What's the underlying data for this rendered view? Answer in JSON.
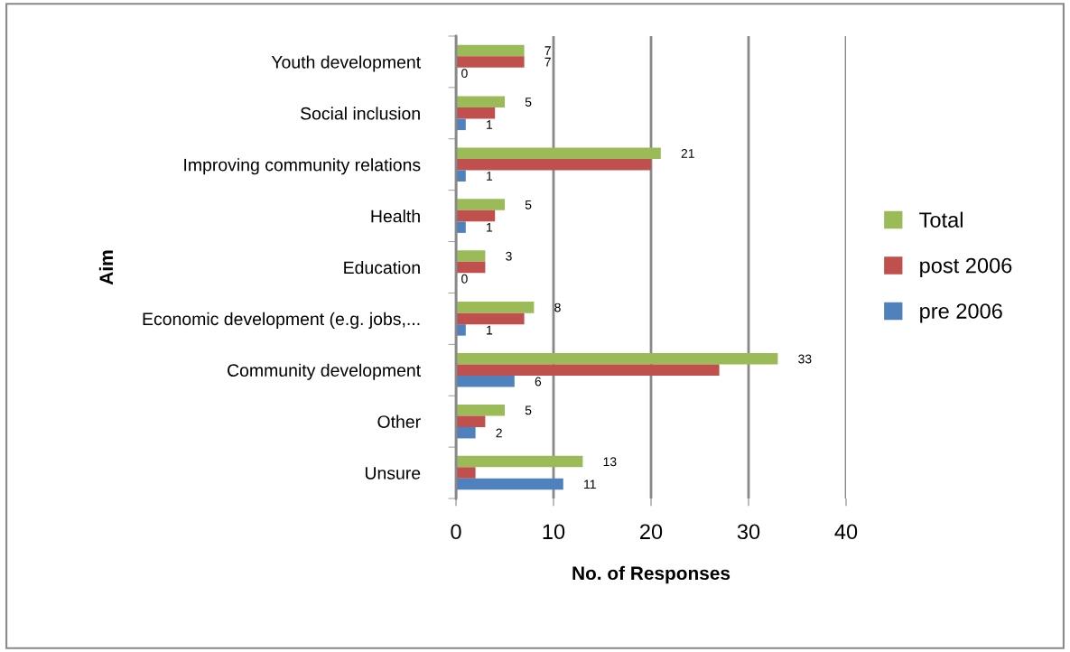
{
  "chart_data": {
    "type": "bar",
    "orientation": "horizontal",
    "xlabel": "No. of Responses",
    "ylabel": "Aim",
    "categories": [
      "Youth development",
      "Social inclusion",
      "Improving community relations",
      "Health",
      "Education",
      "Economic development (e.g. jobs,...",
      "Community development",
      "Other",
      "Unsure"
    ],
    "series": [
      {
        "name": "Total",
        "color": "#9bbb59",
        "values": [
          7,
          5,
          21,
          5,
          3,
          8,
          33,
          5,
          13
        ],
        "value_labels": [
          "7",
          "5",
          "21",
          "5",
          "3",
          "8",
          "33",
          "5",
          "13"
        ]
      },
      {
        "name": "post 2006",
        "color": "#c0504d",
        "values": [
          7,
          4,
          20,
          4,
          3,
          7,
          27,
          3,
          2
        ],
        "value_labels": [
          "7",
          null,
          null,
          null,
          null,
          null,
          null,
          null,
          null
        ]
      },
      {
        "name": "pre 2006",
        "color": "#4f81bd",
        "values": [
          0,
          1,
          1,
          1,
          0,
          1,
          6,
          2,
          11
        ],
        "value_labels": [
          "0",
          "1",
          "1",
          "1",
          "0",
          "1",
          "6",
          "2",
          "11"
        ]
      }
    ],
    "xlim": [
      0,
      40
    ],
    "xticks": [
      0,
      10,
      20,
      30,
      40
    ],
    "grid": "x",
    "legend": "right"
  }
}
